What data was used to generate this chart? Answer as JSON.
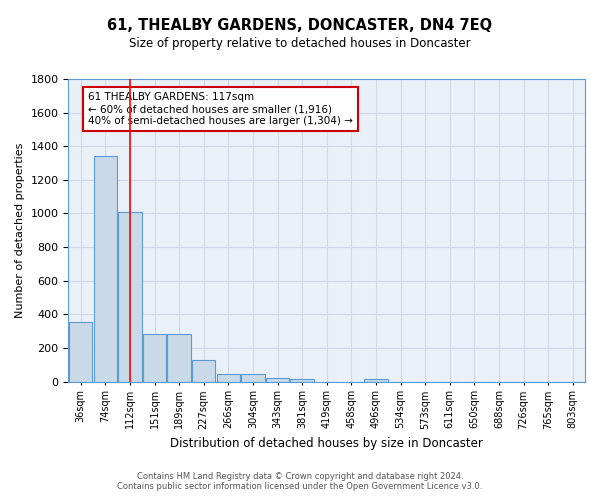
{
  "title": "61, THEALBY GARDENS, DONCASTER, DN4 7EQ",
  "subtitle": "Size of property relative to detached houses in Doncaster",
  "xlabel": "Distribution of detached houses by size in Doncaster",
  "ylabel": "Number of detached properties",
  "categories": [
    "36sqm",
    "74sqm",
    "112sqm",
    "151sqm",
    "189sqm",
    "227sqm",
    "266sqm",
    "304sqm",
    "343sqm",
    "381sqm",
    "419sqm",
    "458sqm",
    "496sqm",
    "534sqm",
    "573sqm",
    "611sqm",
    "650sqm",
    "688sqm",
    "726sqm",
    "765sqm",
    "803sqm"
  ],
  "values": [
    355,
    1340,
    1010,
    285,
    280,
    130,
    43,
    43,
    20,
    18,
    0,
    0,
    18,
    0,
    0,
    0,
    0,
    0,
    0,
    0,
    0
  ],
  "bar_color": "#c9d9e8",
  "bar_edge_color": "#5b9bd5",
  "grid_color": "#d0d8e8",
  "background_color": "#eaf0f8",
  "red_line_x": 2,
  "annotation_text": "61 THEALBY GARDENS: 117sqm\n← 60% of detached houses are smaller (1,916)\n40% of semi-detached houses are larger (1,304) →",
  "annotation_box_color": "#ffffff",
  "annotation_box_edge": "#cc0000",
  "ylim": [
    0,
    1800
  ],
  "yticks": [
    0,
    200,
    400,
    600,
    800,
    1000,
    1200,
    1400,
    1600,
    1800
  ],
  "footer_line1": "Contains HM Land Registry data © Crown copyright and database right 2024.",
  "footer_line2": "Contains public sector information licensed under the Open Government Licence v3.0."
}
